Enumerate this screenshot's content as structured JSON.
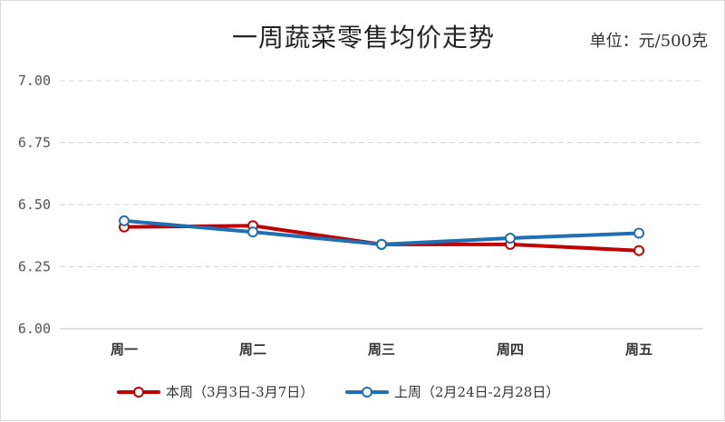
{
  "chart_data": {
    "type": "line",
    "title": "一周蔬菜零售均价走势",
    "unit_label": "单位：元/500克",
    "categories": [
      "周一",
      "周二",
      "周三",
      "周四",
      "周五"
    ],
    "ylim": [
      6.0,
      7.0
    ],
    "yticks": [
      "6.00",
      "6.25",
      "6.50",
      "6.75",
      "7.00"
    ],
    "grid": true,
    "legend_position": "bottom",
    "series": [
      {
        "name": "本周（3月3日-3月7日）",
        "color": "#c00000",
        "values": [
          6.41,
          6.415,
          6.34,
          6.34,
          6.315
        ]
      },
      {
        "name": "上周（2月24日-2月28日）",
        "color": "#1f6fb5",
        "values": [
          6.435,
          6.39,
          6.34,
          6.365,
          6.385
        ]
      }
    ]
  }
}
